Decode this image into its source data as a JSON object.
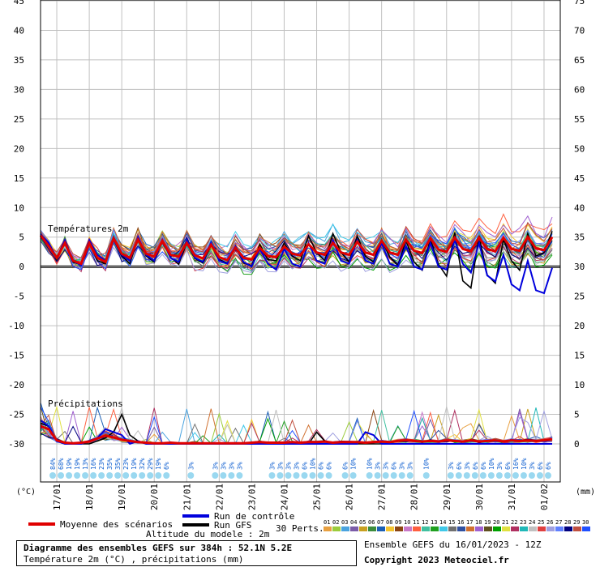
{
  "chart_data": {
    "type": "line",
    "title": "Diagramme des ensembles GEFS sur 384h : 52.1N 5.2E",
    "subtitle": "Température 2m (°C) , précipitations (mm)",
    "left_axis_unit": "(°C)",
    "right_axis_unit": "(mm)",
    "left_ticks": [
      45,
      40,
      35,
      30,
      25,
      20,
      15,
      10,
      5,
      0,
      -5,
      -10,
      -15,
      -20,
      -25,
      -30
    ],
    "right_ticks": [
      75,
      70,
      65,
      60,
      55,
      50,
      45,
      40,
      35,
      30,
      25,
      20,
      15,
      10,
      5,
      0
    ],
    "temp_range": [
      -30,
      45
    ],
    "precip_range": [
      0,
      75
    ],
    "hours_range": [
      0,
      384
    ],
    "date_labels": [
      "17/01",
      "18/01",
      "19/01",
      "20/01",
      "21/01",
      "22/01",
      "23/01",
      "24/01",
      "25/01",
      "26/01",
      "27/01",
      "28/01",
      "29/01",
      "30/01",
      "31/01",
      "01/02"
    ],
    "panel_labels": {
      "temperature": "Températures 2m",
      "precipitation": "Précipitations"
    },
    "snow_labels": [
      {
        "h": 9,
        "label": "84%"
      },
      {
        "h": 15,
        "label": "68%"
      },
      {
        "h": 21,
        "label": "19%"
      },
      {
        "h": 27,
        "label": "19%"
      },
      {
        "h": 33,
        "label": "13%"
      },
      {
        "h": 39,
        "label": "16%"
      },
      {
        "h": 45,
        "label": "23%"
      },
      {
        "h": 51,
        "label": "35%"
      },
      {
        "h": 57,
        "label": "35%"
      },
      {
        "h": 63,
        "label": "23%"
      },
      {
        "h": 69,
        "label": "19%"
      },
      {
        "h": 75,
        "label": "32%"
      },
      {
        "h": 81,
        "label": "29%"
      },
      {
        "h": 87,
        "label": "19%"
      },
      {
        "h": 93,
        "label": "6%"
      },
      {
        "h": 111,
        "label": "3%"
      },
      {
        "h": 129,
        "label": "3%"
      },
      {
        "h": 135,
        "label": "3%"
      },
      {
        "h": 141,
        "label": "3%"
      },
      {
        "h": 147,
        "label": "3%"
      },
      {
        "h": 171,
        "label": "3%"
      },
      {
        "h": 177,
        "label": "3%"
      },
      {
        "h": 183,
        "label": "3%"
      },
      {
        "h": 189,
        "label": "3%"
      },
      {
        "h": 195,
        "label": "6%"
      },
      {
        "h": 201,
        "label": "10%"
      },
      {
        "h": 207,
        "label": "6%"
      },
      {
        "h": 213,
        "label": "6%"
      },
      {
        "h": 225,
        "label": "6%"
      },
      {
        "h": 231,
        "label": "10%"
      },
      {
        "h": 243,
        "label": "10%"
      },
      {
        "h": 249,
        "label": "3%"
      },
      {
        "h": 255,
        "label": "3%"
      },
      {
        "h": 261,
        "label": "6%"
      },
      {
        "h": 267,
        "label": "3%"
      },
      {
        "h": 273,
        "label": "3%"
      },
      {
        "h": 285,
        "label": "10%"
      },
      {
        "h": 303,
        "label": "3%"
      },
      {
        "h": 309,
        "label": "6%"
      },
      {
        "h": 315,
        "label": "3%"
      },
      {
        "h": 321,
        "label": "6%"
      },
      {
        "h": 327,
        "label": "6%"
      },
      {
        "h": 333,
        "label": "10%"
      },
      {
        "h": 339,
        "label": "3%"
      },
      {
        "h": 345,
        "label": "6%"
      },
      {
        "h": 351,
        "label": "16%"
      },
      {
        "h": 357,
        "label": "10%"
      },
      {
        "h": 363,
        "label": "3%"
      },
      {
        "h": 369,
        "label": "6%"
      },
      {
        "h": 375,
        "label": "6%"
      }
    ],
    "series": [
      {
        "name": "Moyenne des scénarios",
        "color": "#e00000"
      },
      {
        "name": "Run de contrôle",
        "color": "#0000dd"
      },
      {
        "name": "Run GFS",
        "color": "#000000"
      }
    ],
    "mean_temp": [
      5.3,
      3.5,
      1.5,
      4.0,
      1.0,
      0.5,
      4.0,
      1.5,
      0.8,
      4.8,
      2.2,
      1.5,
      4.6,
      2.2,
      1.7,
      4.3,
      2.0,
      1.7,
      4.0,
      1.9,
      1.4,
      3.7,
      1.6,
      1.1,
      3.2,
      1.5,
      1.2,
      3.2,
      1.8,
      1.6,
      3.4,
      2.2,
      1.9,
      3.8,
      2.4,
      2.0,
      4.0,
      2.4,
      2.0,
      4.2,
      2.4,
      2.0,
      4.4,
      2.4,
      2.0,
      4.6,
      2.7,
      2.3,
      4.8,
      2.9,
      2.5,
      4.9,
      3.0,
      2.6,
      4.9,
      3.0,
      2.6,
      4.9,
      3.0,
      2.7,
      5.0,
      3.1,
      2.8,
      5.0
    ],
    "control_temp": [
      5.5,
      4.0,
      1.5,
      4.5,
      1.0,
      0.2,
      4.5,
      2.0,
      1.0,
      5.0,
      2.0,
      1.0,
      5.0,
      2.0,
      1.0,
      4.5,
      1.5,
      0.8,
      4.5,
      1.5,
      0.8,
      4.0,
      1.0,
      0.5,
      3.5,
      0.8,
      0.0,
      3.0,
      0.5,
      -0.5,
      3.0,
      0.5,
      0.0,
      4.0,
      1.0,
      0.5,
      4.5,
      1.0,
      0.5,
      4.5,
      1.0,
      0.5,
      4.0,
      0.5,
      0.0,
      3.5,
      0.0,
      -0.5,
      4.0,
      0.0,
      -0.5,
      4.5,
      0.5,
      -1.0,
      4.0,
      -1.5,
      -2.5,
      2.0,
      -3.0,
      -4.0,
      1.0,
      -4.0,
      -4.5,
      -0.2
    ],
    "gfs_temp": [
      5.4,
      3.8,
      1.2,
      4.2,
      0.8,
      0.3,
      4.2,
      1.0,
      0.5,
      4.6,
      1.8,
      0.5,
      5.0,
      1.8,
      0.8,
      4.4,
      1.6,
      0.4,
      4.0,
      1.4,
      0.6,
      3.6,
      1.2,
      0.6,
      3.4,
      0.6,
      0.2,
      3.8,
      1.2,
      1.0,
      4.0,
      1.8,
      1.0,
      5.2,
      2.4,
      1.0,
      5.6,
      2.4,
      0.8,
      5.2,
      1.8,
      0.8,
      4.6,
      1.6,
      0.2,
      4.4,
      0.8,
      -0.6,
      4.6,
      0.4,
      -1.6,
      5.8,
      -2.4,
      -3.6,
      5.2,
      -1.4,
      -2.8,
      4.6,
      1.0,
      -0.6,
      5.6,
      1.8,
      2.4,
      6.0
    ],
    "mean_precip": [
      3.0,
      2.5,
      0.6,
      0.2,
      0.1,
      0.2,
      0.4,
      0.9,
      1.4,
      1.1,
      0.7,
      0.5,
      0.3,
      0.2,
      0.1,
      0.1,
      0.2,
      0.1,
      0.1,
      0.1,
      0.1,
      0.1,
      0.1,
      0.1,
      0.1,
      0.1,
      0.2,
      0.3,
      0.2,
      0.2,
      0.2,
      0.3,
      0.2,
      0.3,
      0.3,
      0.4,
      0.2,
      0.3,
      0.3,
      0.3,
      0.2,
      0.3,
      0.4,
      0.3,
      0.5,
      0.6,
      0.5,
      0.4,
      0.5,
      0.4,
      0.6,
      0.5,
      0.4,
      0.6,
      0.4,
      0.5,
      0.6,
      0.4,
      0.6,
      0.5,
      0.6,
      0.5,
      0.6,
      0.8
    ],
    "control_precip": [
      4.0,
      3.0,
      0.5,
      0.0,
      0.0,
      0.0,
      0.5,
      1.0,
      2.5,
      2.0,
      1.5,
      0.0,
      0.5,
      0.0,
      0.0,
      0.0,
      0.0,
      0.0,
      0.0,
      0.0,
      0.0,
      0.0,
      0.0,
      0.0,
      0.0,
      0.0,
      0.0,
      0.0,
      0.0,
      0.0,
      0.0,
      0.0,
      0.0,
      0.0,
      0.0,
      0.0,
      0.0,
      0.0,
      0.0,
      0.0,
      2.0,
      1.5,
      0.0,
      0.0,
      0.0,
      0.0,
      0.0,
      0.0,
      0.0,
      0.0,
      0.0,
      0.0,
      0.0,
      0.0,
      0.0,
      0.0,
      0.0,
      0.0,
      0.0,
      0.0,
      0.0,
      0.0,
      0.0,
      0.0
    ],
    "gfs_precip": [
      3.5,
      3.0,
      0.5,
      0.0,
      0.0,
      0.0,
      0.0,
      0.5,
      1.0,
      2.0,
      5.0,
      1.5,
      0.5,
      0.0,
      0.0,
      0.0,
      0.0,
      0.0,
      0.0,
      0.0,
      0.0,
      0.0,
      0.0,
      0.0,
      0.0,
      0.0,
      0.0,
      0.0,
      0.0,
      0.0,
      0.0,
      0.0,
      0.0,
      0.0,
      2.0,
      0.5,
      0.0,
      0.0,
      0.0,
      0.0,
      0.0,
      0.0,
      0.0,
      0.0,
      0.0,
      0.0,
      0.0,
      0.0,
      0.0,
      0.0,
      0.0,
      0.0,
      0.0,
      0.0,
      0.0,
      0.0,
      0.0,
      0.0,
      0.0,
      0.0,
      0.0,
      0.0,
      0.0,
      0.0
    ],
    "perturbation_colors": [
      "#e8a040",
      "#9ccc3c",
      "#4aa3df",
      "#7b5ca8",
      "#c8a020",
      "#3c8c3c",
      "#1b5fb5",
      "#f4c430",
      "#8b4513",
      "#c878c8",
      "#ff6040",
      "#40c0a0",
      "#20a020",
      "#40c8e8",
      "#707070",
      "#3050a0",
      "#d07030",
      "#a060d0",
      "#605020",
      "#00a000",
      "#e0e040",
      "#b03060",
      "#20b8b8",
      "#c0c0c0",
      "#e04040",
      "#a0a0e0",
      "#6080ff",
      "#000080",
      "#c05040",
      "#2050ff"
    ],
    "perturbation_ids": [
      "01",
      "02",
      "03",
      "04",
      "05",
      "06",
      "07",
      "08",
      "09",
      "10",
      "11",
      "12",
      "13",
      "14",
      "15",
      "16",
      "17",
      "18",
      "19",
      "20",
      "21",
      "22",
      "23",
      "24",
      "25",
      "26",
      "27",
      "28",
      "29",
      "30"
    ]
  },
  "legend": {
    "mean": "Moyenne des scénarios",
    "control": "Run de contrôle",
    "gfs": "Run GFS",
    "perts_label": "30 Perts.",
    "altitude": "Altitude du modele : 2m"
  },
  "footer": {
    "title": "Diagramme des ensembles GEFS sur 384h : 52.1N 5.2E",
    "subtitle": "Température 2m (°C) , précipitations (mm)",
    "run_info": "Ensemble GEFS du 16/01/2023 - 12Z",
    "copyright": "Copyright 2023 Meteociel.fr"
  },
  "colors": {
    "grid": "#c0c0c0",
    "mean": "#e00000",
    "control": "#0000dd",
    "gfs": "#000000",
    "snow": "#9ad8f0",
    "snow_text": "#1060d0"
  }
}
